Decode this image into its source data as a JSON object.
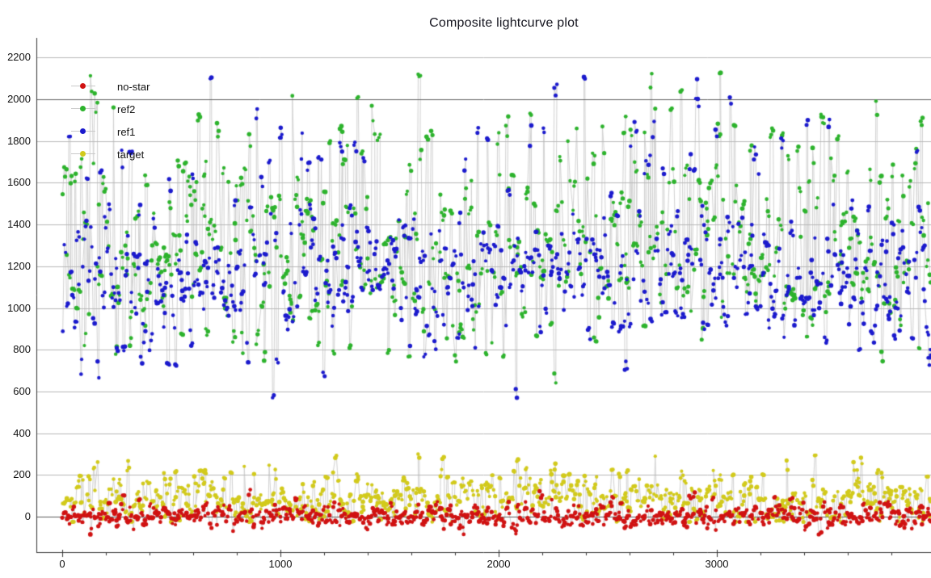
{
  "chart_data": {
    "type": "scatter",
    "title": "Composite lightcurve plot",
    "xlabel": "",
    "ylabel": "",
    "xlim": [
      0,
      3985
    ],
    "ylim": [
      -150,
      2300
    ],
    "x_ticks": [
      0,
      1000,
      2000,
      3000
    ],
    "x_minor_tick_step": 200,
    "y_ticks": [
      0,
      200,
      400,
      600,
      800,
      1000,
      1200,
      1400,
      1600,
      1800,
      2000,
      2200
    ],
    "emphasized_gridlines": [
      0,
      2000
    ],
    "grid": true,
    "legend_position": "top-left",
    "legend_order": [
      "no-star",
      "ref2",
      "ref1",
      "target"
    ],
    "draw_order": [
      "ref2",
      "ref1",
      "target",
      "no-star"
    ],
    "stem_color": "#d2d2d2",
    "gridline_color": "#b7b7b7",
    "emphasized_gridline_color": "#5e5e5e",
    "axis_color": "#333333",
    "background_color": "#ffffff",
    "seed": 1337,
    "epochs": 430,
    "points_per_epoch_min": 1,
    "points_per_epoch_max": 3,
    "series": [
      {
        "name": "no-star",
        "color": "#d01212",
        "marker": "circle",
        "marker_radius": 2.4,
        "approx_points": 950,
        "y_min": -85,
        "y_max": 160,
        "cluster_value_spread": 14,
        "mixture": [
          {
            "weight": 0.87,
            "center": 0,
            "spread": 22
          },
          {
            "weight": 0.13,
            "center": 50,
            "spread": 38
          }
        ]
      },
      {
        "name": "ref2",
        "color": "#2db32d",
        "marker": "circle",
        "marker_radius": 2.4,
        "approx_points": 950,
        "y_min": 620,
        "y_max": 2160,
        "cluster_value_spread": 28,
        "mixture": [
          {
            "weight": 0.55,
            "center": 1240,
            "spread": 190
          },
          {
            "weight": 0.25,
            "center": 1520,
            "spread": 210
          },
          {
            "weight": 0.12,
            "center": 1850,
            "spread": 170
          },
          {
            "weight": 0.08,
            "center": 950,
            "spread": 150
          }
        ]
      },
      {
        "name": "ref1",
        "color": "#1b1acd",
        "marker": "circle",
        "marker_radius": 2.4,
        "approx_points": 950,
        "y_min": 570,
        "y_max": 2130,
        "cluster_value_spread": 28,
        "mixture": [
          {
            "weight": 0.72,
            "center": 1140,
            "spread": 165
          },
          {
            "weight": 0.18,
            "center": 1390,
            "spread": 220
          },
          {
            "weight": 0.06,
            "center": 1750,
            "spread": 180
          },
          {
            "weight": 0.04,
            "center": 800,
            "spread": 110
          }
        ]
      },
      {
        "name": "target",
        "color": "#d2ca1c",
        "marker": "circle",
        "marker_radius": 2.4,
        "approx_points": 950,
        "y_min": -25,
        "y_max": 300,
        "cluster_value_spread": 16,
        "mixture": [
          {
            "weight": 0.8,
            "center": 75,
            "spread": 55
          },
          {
            "weight": 0.2,
            "center": 185,
            "spread": 55
          }
        ]
      }
    ]
  }
}
